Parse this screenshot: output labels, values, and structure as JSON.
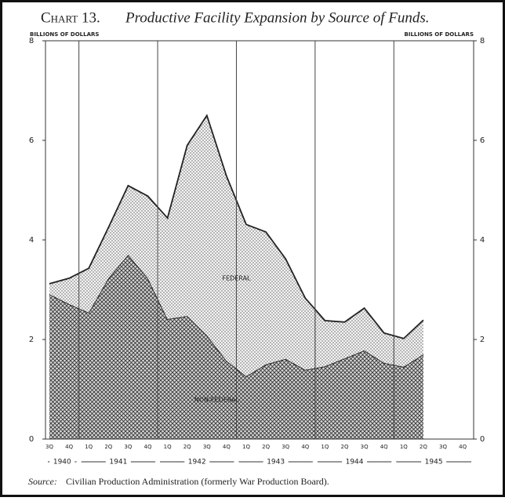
{
  "chart_data": {
    "type": "stacked_area",
    "title_number": "Chart 13.",
    "title": "Productive Facility Expansion by Source of Funds.",
    "ylabel": "BILLIONS OF DOLLARS",
    "y2label": "BILLIONS OF DOLLARS",
    "categories": [
      "3Q",
      "4Q",
      "1Q",
      "2Q",
      "3Q",
      "4Q",
      "1Q",
      "2Q",
      "3Q",
      "4Q",
      "1Q",
      "2Q",
      "3Q",
      "4Q",
      "1Q",
      "2Q",
      "3Q",
      "4Q",
      "1Q",
      "2Q",
      "3Q",
      "4Q"
    ],
    "years": [
      "1940",
      "1941",
      "1942",
      "1943",
      "1944",
      "1945"
    ],
    "series": [
      {
        "name": "NON-FEDERAL",
        "color": "#555555",
        "values": [
          2.91,
          2.71,
          2.54,
          3.23,
          3.7,
          3.23,
          2.41,
          2.47,
          2.08,
          1.57,
          1.26,
          1.5,
          1.61,
          1.39,
          1.46,
          1.62,
          1.78,
          1.53,
          1.45,
          1.7,
          null,
          null
        ]
      },
      {
        "name": "FEDERAL",
        "color": "#999999",
        "values": [
          0.21,
          0.52,
          0.89,
          1.02,
          1.39,
          1.65,
          2.03,
          3.43,
          4.42,
          3.71,
          3.05,
          2.66,
          2.01,
          1.44,
          0.92,
          0.73,
          0.85,
          0.6,
          0.57,
          0.69,
          null,
          null
        ]
      }
    ],
    "ylim": [
      0,
      8
    ],
    "yticks": [
      0,
      2,
      4,
      6,
      8
    ],
    "y2lim": [
      0,
      8
    ],
    "y2ticks": [
      0,
      2,
      4,
      6,
      8
    ],
    "source_label": "Source:",
    "source": "Civilian Production Administration (formerly War Production Board)."
  }
}
